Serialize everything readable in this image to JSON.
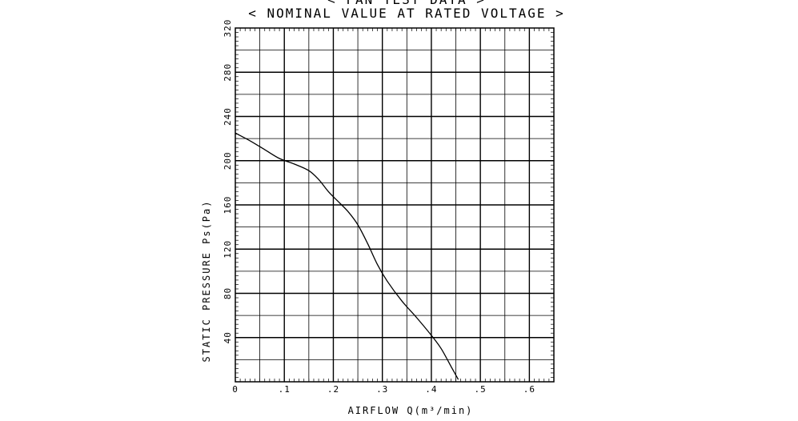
{
  "chart_data": {
    "type": "line",
    "title": "< FAN TEST DATA >",
    "subtitle": "< NOMINAL VALUE AT RATED VOLTAGE >",
    "xlabel": "AIRFLOW Q(m³/min)",
    "ylabel": "STATIC PRESSURE Ps(Pa)",
    "xlim": [
      0,
      0.65
    ],
    "ylim": [
      0,
      320
    ],
    "grid": true,
    "x_ticks": [
      "0",
      ".1",
      ".2",
      ".3",
      ".4",
      ".5",
      ".6"
    ],
    "y_ticks": [
      "40",
      "80",
      "120",
      "160",
      "200",
      "240",
      "280",
      "320"
    ],
    "series": [
      {
        "x": [
          0,
          0.03,
          0.06,
          0.09,
          0.12,
          0.15,
          0.17,
          0.19,
          0.21,
          0.23,
          0.25,
          0.27,
          0.29,
          0.31,
          0.34,
          0.37,
          0.4,
          0.42,
          0.44,
          0.455
        ],
        "y": [
          225,
          218,
          210,
          202,
          197,
          191,
          183,
          172,
          163,
          154,
          142,
          125,
          106,
          91,
          73,
          58,
          42,
          30,
          14,
          2
        ]
      }
    ]
  }
}
